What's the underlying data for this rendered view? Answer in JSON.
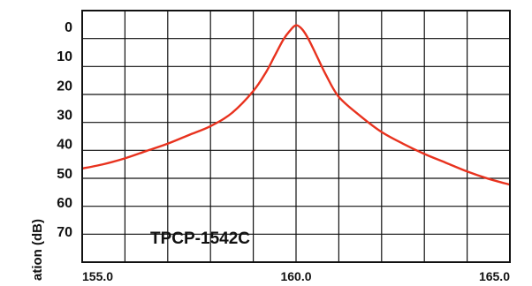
{
  "chart_data": {
    "type": "line",
    "ylabel": "Attenuation (dB)",
    "ylabel_visible": "ation (dB)",
    "annotation": "TPCP-1542C",
    "x_ticks": [
      "155.0",
      "160.0",
      "165.0"
    ],
    "y_ticks": [
      "0",
      "10",
      "20",
      "30",
      "40",
      "50",
      "60",
      "70"
    ],
    "xlim": [
      155.0,
      165.0
    ],
    "ylim": [
      -6,
      80
    ],
    "y_inverted": true,
    "grid": true,
    "series": [
      {
        "color": "#e8321e",
        "x": [
          155.0,
          155.5,
          156.0,
          156.5,
          157.0,
          157.5,
          158.0,
          158.5,
          159.0,
          159.3,
          159.5,
          159.7,
          159.85,
          160.0,
          160.15,
          160.3,
          160.5,
          160.7,
          161.0,
          161.5,
          162.0,
          162.5,
          163.0,
          163.5,
          164.0,
          164.5,
          165.0
        ],
        "y": [
          48,
          46.5,
          44.5,
          42,
          39.5,
          36.5,
          33.5,
          29,
          21.5,
          15,
          9.5,
          4,
          1,
          -1,
          0.5,
          4,
          10,
          16,
          23.5,
          30,
          35.5,
          39.5,
          43,
          46,
          49,
          51.5,
          53.5
        ]
      }
    ]
  }
}
